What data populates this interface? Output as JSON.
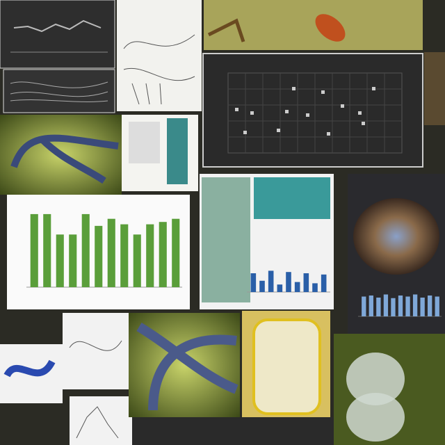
{
  "panels": {
    "green_bar_chart": {
      "type": "bar",
      "color": "#5a9e3a",
      "ylim": [
        0,
        100
      ],
      "values": [
        93,
        93,
        67,
        67,
        93,
        78,
        87,
        80,
        67,
        80,
        83,
        87
      ]
    },
    "dark_bar_chart": {
      "type": "bar",
      "color": "#7fa8d8",
      "ylim": [
        0,
        100
      ],
      "values": [
        38,
        40,
        36,
        42,
        35,
        40,
        38,
        42,
        36,
        40,
        38
      ]
    },
    "doc_bar_chart": {
      "type": "bar",
      "color": "#2a5fa8",
      "ylim": [
        0,
        100
      ],
      "values": [
        30,
        18,
        34,
        12,
        32,
        16,
        30,
        14,
        28
      ]
    }
  }
}
